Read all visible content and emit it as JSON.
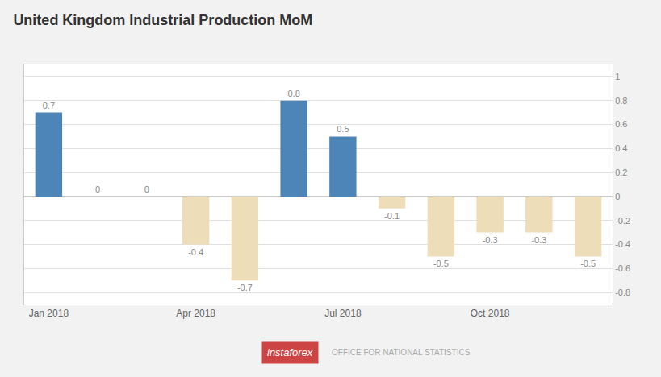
{
  "chart_data": {
    "type": "bar",
    "title": "United Kingdom Industrial Production MoM",
    "categories": [
      "Jan 2018",
      null,
      null,
      "Apr 2018",
      null,
      null,
      "Jul 2018",
      null,
      null,
      "Oct 2018",
      null,
      null
    ],
    "values": [
      0.7,
      0.0,
      0.0,
      -0.4,
      -0.7,
      0.8,
      0.5,
      -0.1,
      -0.5,
      -0.3,
      -0.3,
      -0.5
    ],
    "colors": [
      "#4d85b8",
      "#4d85b8",
      "#4d85b8",
      "#edddb8",
      "#edddb8",
      "#4d85b8",
      "#4d85b8",
      "#edddb8",
      "#edddb8",
      "#edddb8",
      "#edddb8",
      "#edddb8"
    ],
    "ylim": [
      -0.9,
      1.1
    ],
    "yticks": [
      -0.8,
      -0.6,
      -0.4,
      -0.2,
      0,
      0.2,
      0.4,
      0.6,
      0.8,
      1
    ],
    "grid": true,
    "data_labels": true,
    "annotations": [
      "instaforex",
      "OFFICE FOR NATIONAL STATISTICS"
    ]
  }
}
